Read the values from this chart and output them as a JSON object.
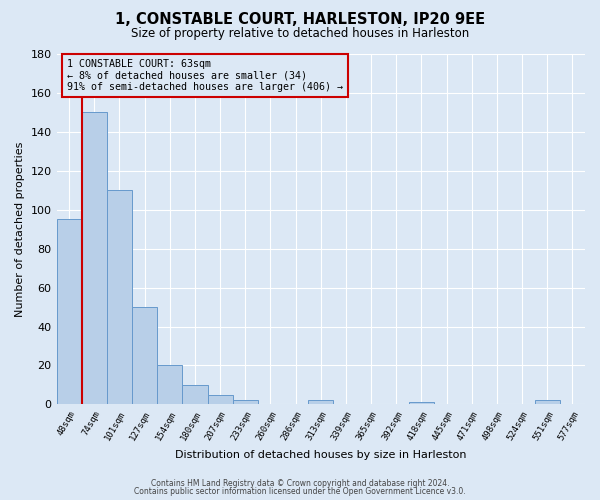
{
  "title": "1, CONSTABLE COURT, HARLESTON, IP20 9EE",
  "subtitle": "Size of property relative to detached houses in Harleston",
  "xlabel": "Distribution of detached houses by size in Harleston",
  "ylabel": "Number of detached properties",
  "bar_labels": [
    "48sqm",
    "74sqm",
    "101sqm",
    "127sqm",
    "154sqm",
    "180sqm",
    "207sqm",
    "233sqm",
    "260sqm",
    "286sqm",
    "313sqm",
    "339sqm",
    "365sqm",
    "392sqm",
    "418sqm",
    "445sqm",
    "471sqm",
    "498sqm",
    "524sqm",
    "551sqm",
    "577sqm"
  ],
  "bar_values": [
    95,
    150,
    110,
    50,
    20,
    10,
    5,
    2,
    0,
    0,
    2,
    0,
    0,
    0,
    1,
    0,
    0,
    0,
    0,
    2,
    0
  ],
  "bar_color": "#b8cfe8",
  "bar_edge_color": "#6699cc",
  "bar_edge_width": 0.7,
  "ylim": [
    0,
    180
  ],
  "yticks": [
    0,
    20,
    40,
    60,
    80,
    100,
    120,
    140,
    160,
    180
  ],
  "marker_color": "#cc0000",
  "annotation_title": "1 CONSTABLE COURT: 63sqm",
  "annotation_line1": "← 8% of detached houses are smaller (34)",
  "annotation_line2": "91% of semi-detached houses are larger (406) →",
  "annotation_box_color": "#cc0000",
  "bg_color": "#dce8f5",
  "grid_color": "#ffffff",
  "footer1": "Contains HM Land Registry data © Crown copyright and database right 2024.",
  "footer2": "Contains public sector information licensed under the Open Government Licence v3.0."
}
